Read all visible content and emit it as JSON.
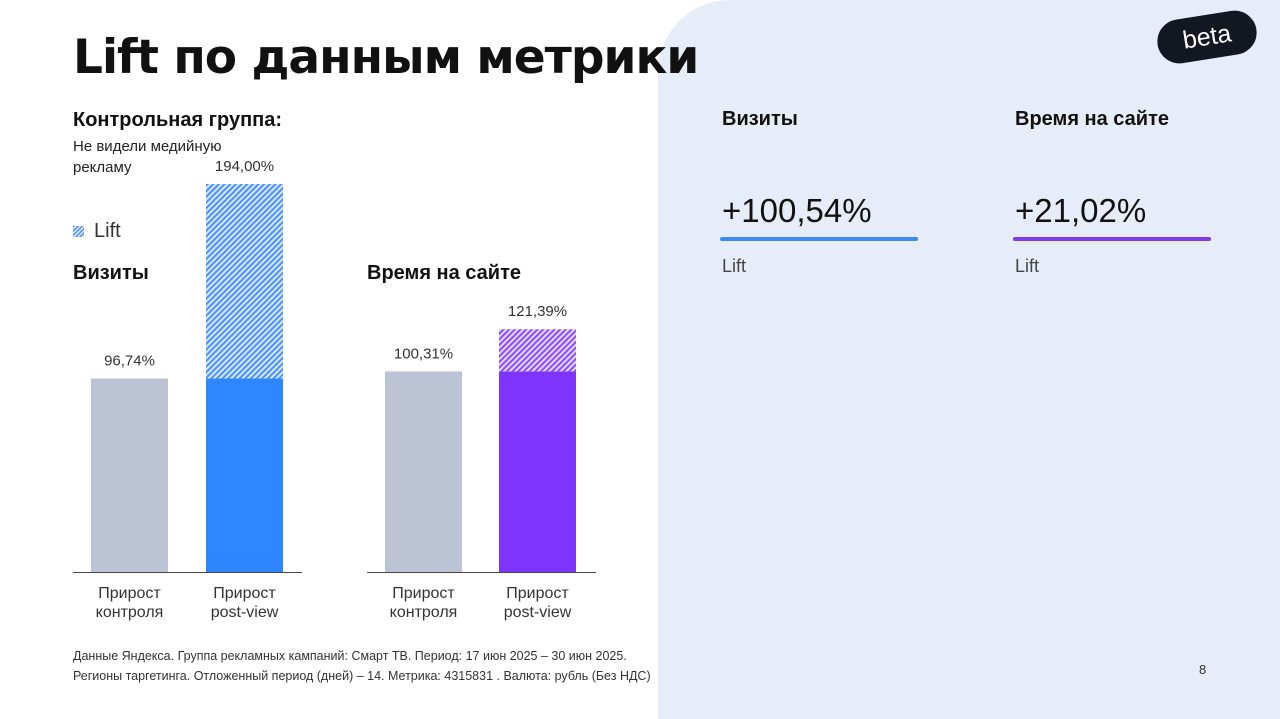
{
  "title": "Lift по данным метрики",
  "control_group": {
    "heading": "Контрольная группа:",
    "description": "Не видели медийную рекламу"
  },
  "legend": {
    "label": "Lift"
  },
  "colors": {
    "control": "#bcc3d4",
    "visits": "#2f87ff",
    "time": "#7d35ff",
    "panel_bg": "#e7edf8"
  },
  "chart_data": [
    {
      "type": "bar",
      "title": "Визиты",
      "categories": [
        "Прирост контроля",
        "Прирост post-view"
      ],
      "values": [
        96.74,
        194.0
      ],
      "value_labels": [
        "96,74%",
        "194,00%"
      ],
      "lift_base": 96.74,
      "category_lines": [
        [
          "Прирост",
          "контроля"
        ],
        [
          "Прирост",
          "post-view"
        ]
      ],
      "ylim": [
        0,
        200
      ]
    },
    {
      "type": "bar",
      "title": "Время на сайте",
      "categories": [
        "Прирост контроля",
        "Прирост post-view"
      ],
      "values": [
        100.31,
        121.39
      ],
      "value_labels": [
        "100,31%",
        "121,39%"
      ],
      "lift_base": 100.31,
      "category_lines": [
        [
          "Прирост",
          "контроля"
        ],
        [
          "Прирост",
          "post-view"
        ]
      ],
      "ylim": [
        0,
        200
      ]
    }
  ],
  "footnote": {
    "line1": "Данные Яндекса. Группа рекламных кампаний: Смарт ТВ. Период: 17 июн 2025 – 30 июн 2025.",
    "line2": "Регионы таргетинга. Отложенный период (дней) – 14. Метрика: 4315831 . Валюта: рубль (Без НДС)"
  },
  "badge": "beta",
  "kpis": [
    {
      "label": "Визиты",
      "value": "+100,54%",
      "sub": "Lift"
    },
    {
      "label": "Время на сайте",
      "value": "+21,02%",
      "sub": "Lift"
    }
  ],
  "page_number": "8"
}
